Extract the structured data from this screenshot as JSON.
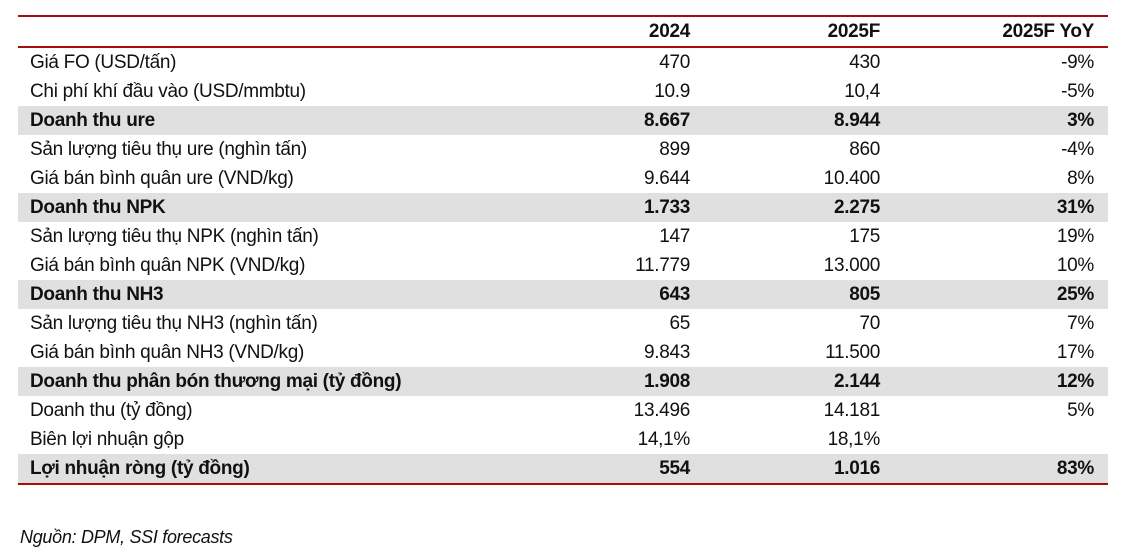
{
  "colors": {
    "accent_red": "#A50D0D",
    "row_shade": "#E0E0E0",
    "text": "#111111",
    "background": "#FFFFFF"
  },
  "table": {
    "columns": [
      {
        "label": ""
      },
      {
        "label": "2024"
      },
      {
        "label": "2025F"
      },
      {
        "label": "2025F YoY"
      }
    ],
    "rows": [
      {
        "label": "Giá FO (USD/tấn)",
        "y2024": "470",
        "y2025f": "430",
        "yoy": "-9%",
        "highlight": false
      },
      {
        "label": "Chi phí khí đầu vào (USD/mmbtu)",
        "y2024": "10.9",
        "y2025f": "10,4",
        "yoy": "-5%",
        "highlight": false
      },
      {
        "label": "Doanh thu ure",
        "y2024": "8.667",
        "y2025f": "8.944",
        "yoy": "3%",
        "highlight": true
      },
      {
        "label": "Sản lượng tiêu thụ ure (nghìn tấn)",
        "y2024": "899",
        "y2025f": "860",
        "yoy": "-4%",
        "highlight": false
      },
      {
        "label": "Giá bán bình quân ure (VND/kg)",
        "y2024": "9.644",
        "y2025f": "10.400",
        "yoy": "8%",
        "highlight": false
      },
      {
        "label": "Doanh thu NPK",
        "y2024": "1.733",
        "y2025f": "2.275",
        "yoy": "31%",
        "highlight": true
      },
      {
        "label": "Sản lượng tiêu thụ NPK (nghìn tấn)",
        "y2024": "147",
        "y2025f": "175",
        "yoy": "19%",
        "highlight": false
      },
      {
        "label": "Giá bán bình quân NPK (VND/kg)",
        "y2024": "11.779",
        "y2025f": "13.000",
        "yoy": "10%",
        "highlight": false
      },
      {
        "label": "Doanh thu NH3",
        "y2024": "643",
        "y2025f": "805",
        "yoy": "25%",
        "highlight": true
      },
      {
        "label": "Sản lượng tiêu thụ NH3 (nghìn tấn)",
        "y2024": "65",
        "y2025f": "70",
        "yoy": "7%",
        "highlight": false
      },
      {
        "label": "Giá bán bình quân NH3 (VND/kg)",
        "y2024": "9.843",
        "y2025f": "11.500",
        "yoy": "17%",
        "highlight": false
      },
      {
        "label": "Doanh thu phân bón thương mại (tỷ đồng)",
        "y2024": "1.908",
        "y2025f": "2.144",
        "yoy": "12%",
        "highlight": true
      },
      {
        "label": "Doanh thu (tỷ đồng)",
        "y2024": "13.496",
        "y2025f": "14.181",
        "yoy": "5%",
        "highlight": false
      },
      {
        "label": "Biên lợi nhuận gộp",
        "y2024": "14,1%",
        "y2025f": "18,1%",
        "yoy": "",
        "highlight": false
      },
      {
        "label": "Lợi nhuận ròng (tỷ đồng)",
        "y2024": "554",
        "y2025f": "1.016",
        "yoy": "83%",
        "highlight": true
      }
    ]
  },
  "footer": {
    "source": "Nguồn: DPM, SSI forecasts"
  }
}
